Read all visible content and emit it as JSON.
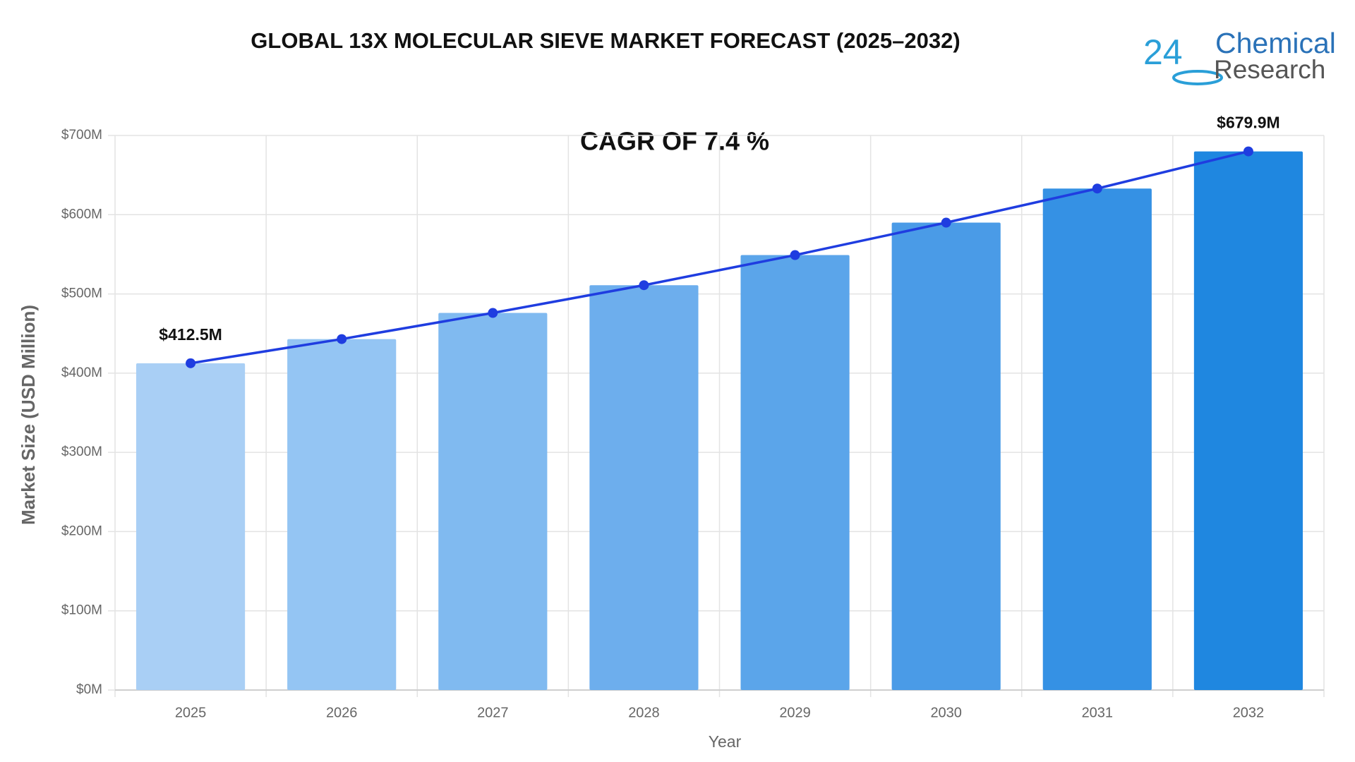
{
  "chart_data": {
    "type": "bar",
    "title": "GLOBAL 13X MOLECULAR SIEVE MARKET FORECAST (2025–2032)",
    "annotation": "CAGR OF 7.4 %",
    "x_label": "Year",
    "y_label": "Market Size (USD Million)",
    "categories": [
      "2025",
      "2026",
      "2027",
      "2028",
      "2029",
      "2030",
      "2031",
      "2032"
    ],
    "series": [
      {
        "type": "bar",
        "colors": [
          "#a9cff5",
          "#94c5f3",
          "#80baf0",
          "#6daeed",
          "#5ba5ea",
          "#4a9be7",
          "#3591e4",
          "#1f87e0"
        ],
        "values": [
          412.5,
          443,
          476,
          511,
          549,
          590,
          633,
          679.9
        ]
      },
      {
        "type": "line",
        "color": "#1f3de0",
        "values": [
          412.5,
          443,
          476,
          511,
          549,
          590,
          633,
          679.9
        ],
        "value_labels": [
          "$412.5M",
          null,
          null,
          null,
          null,
          null,
          null,
          "$679.9M"
        ]
      }
    ],
    "ylim": [
      0,
      700
    ],
    "yticks": [
      {
        "value": 0,
        "label": "$0M"
      },
      {
        "value": 100,
        "label": "$100M"
      },
      {
        "value": 200,
        "label": "$200M"
      },
      {
        "value": 300,
        "label": "$300M"
      },
      {
        "value": 400,
        "label": "$400M"
      },
      {
        "value": 500,
        "label": "$500M"
      },
      {
        "value": 600,
        "label": "$600M"
      },
      {
        "value": 700,
        "label": "$700M"
      }
    ],
    "grid": true
  },
  "logo": {
    "number": "24",
    "line1": "Chemical",
    "line2": "Research"
  }
}
